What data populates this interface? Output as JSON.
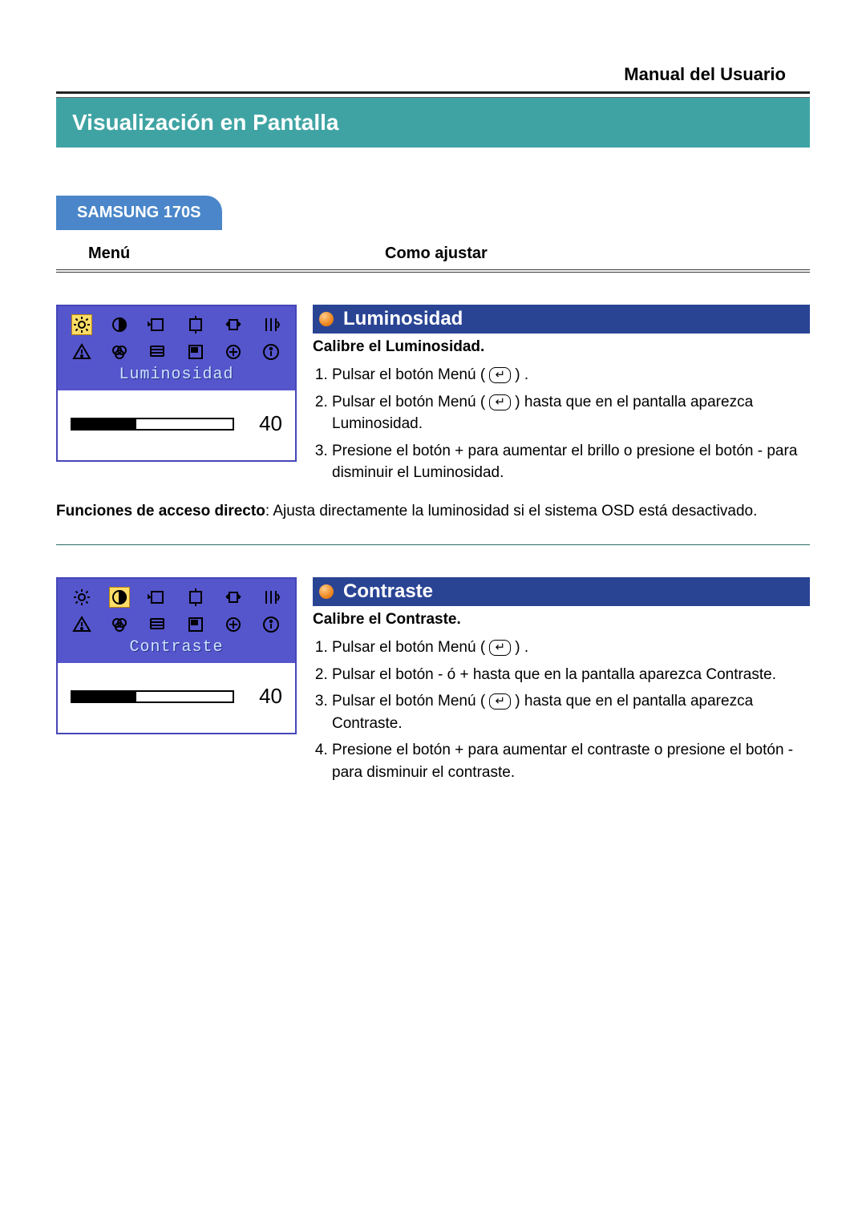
{
  "header": {
    "manual_title": "Manual del Usuario",
    "page_title": "Visualización en Pantalla",
    "product": "SAMSUNG 170S"
  },
  "colors": {
    "teal": "#3fa3a3",
    "blue_tab": "#4a86c9",
    "section_bar": "#2a4494",
    "osd_frame": "#5555cc",
    "osd_label": "#cfe3ff",
    "rule": "#2b6b66",
    "bullet_gradient_light": "#ffcc88",
    "bullet_gradient_mid": "#ee8822",
    "bullet_gradient_dark": "#cc6600",
    "icon_selected_bg": "#ffdd66"
  },
  "columns": {
    "menu": "Menú",
    "howto": "Como ajustar"
  },
  "osd_icons": [
    "brightness",
    "contrast",
    "h-position",
    "v-position",
    "h-size",
    "fine",
    "warning",
    "color",
    "language",
    "menu-position",
    "reset",
    "info"
  ],
  "sections": [
    {
      "key": "luminosidad",
      "osd": {
        "selected_icon_index": 0,
        "label": "Luminosidad",
        "value": 40,
        "fill_pct": 40
      },
      "title": "Luminosidad",
      "subtitle": "Calibre el Luminosidad.",
      "steps": [
        "Pulsar el botón Menú  ( [↵] ) .",
        "Pulsar el botón Menú ( [↵] ) hasta que en el pantalla aparezca Luminosidad.",
        "Presione el botón + para aumentar el brillo o presione el botón - para disminuir el Luminosidad."
      ],
      "note_bold": "Funciones de acceso directo",
      "note_rest": ": Ajusta directamente la luminosidad si el sistema OSD está desactivado."
    },
    {
      "key": "contraste",
      "osd": {
        "selected_icon_index": 1,
        "label": "Contraste",
        "value": 40,
        "fill_pct": 40
      },
      "title": "Contraste",
      "subtitle": "Calibre el Contraste.",
      "steps": [
        "Pulsar el botón Menú ( [↵] ) .",
        "Pulsar el botón - ó + hasta que en la pantalla aparezca Contraste.",
        "Pulsar el botón Menú ( [↵] ) hasta que en el pantalla aparezca Contraste.",
        " Presione el botón + para aumentar el contraste o presione el botón - para disminuir el contraste."
      ]
    }
  ]
}
